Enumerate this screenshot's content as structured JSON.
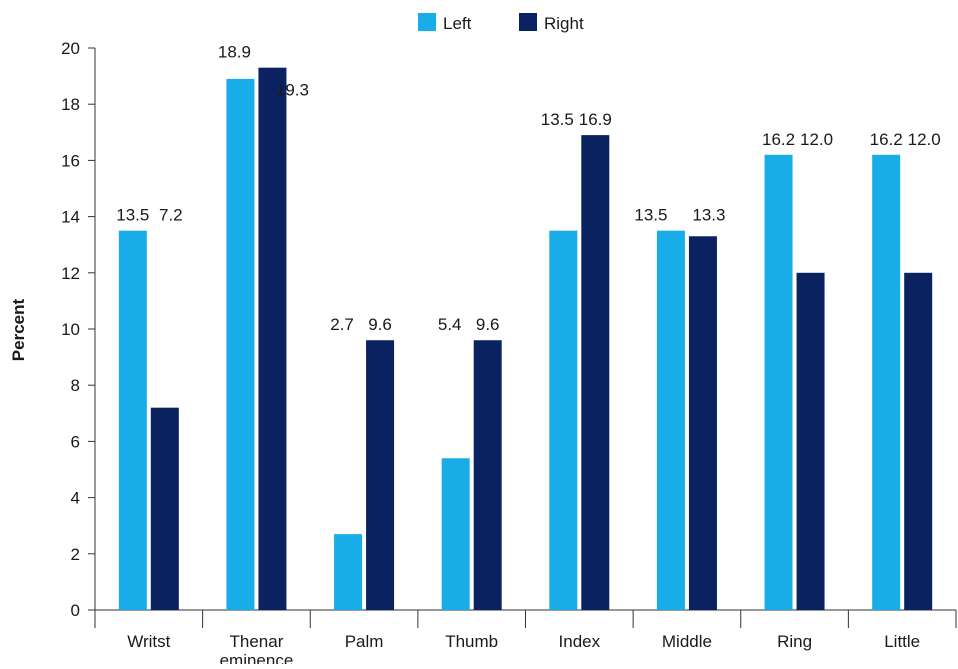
{
  "chart_data": {
    "type": "bar",
    "categories": [
      [
        "Writst"
      ],
      [
        "Thenar",
        "eminence"
      ],
      [
        "Palm"
      ],
      [
        "Thumb"
      ],
      [
        "Index"
      ],
      [
        "Middle"
      ],
      [
        "Ring"
      ],
      [
        "Little"
      ]
    ],
    "series": [
      {
        "name": "Left",
        "color": "#18ade8",
        "values": [
          13.5,
          18.9,
          2.7,
          5.4,
          13.5,
          13.5,
          16.2,
          16.2
        ],
        "labels": [
          "13.5",
          "18.9",
          "2.7",
          "5.4",
          "13.5",
          "13.5",
          "16.2",
          "16.2"
        ]
      },
      {
        "name": "Right",
        "color": "#0b2260",
        "values": [
          7.2,
          19.3,
          9.6,
          9.6,
          16.9,
          13.3,
          12.0,
          12.0
        ],
        "labels": [
          "7.2",
          "19.3",
          "9.6",
          "9.6",
          "16.9",
          "13.3",
          "12.0",
          "12.0"
        ]
      }
    ],
    "title": "",
    "xlabel": "",
    "ylabel": "Percent",
    "ylim": [
      0,
      20
    ],
    "yticks": [
      0,
      2,
      4,
      6,
      8,
      10,
      12,
      14,
      16,
      18,
      20
    ],
    "grid": false,
    "legend_position": "top-center"
  }
}
